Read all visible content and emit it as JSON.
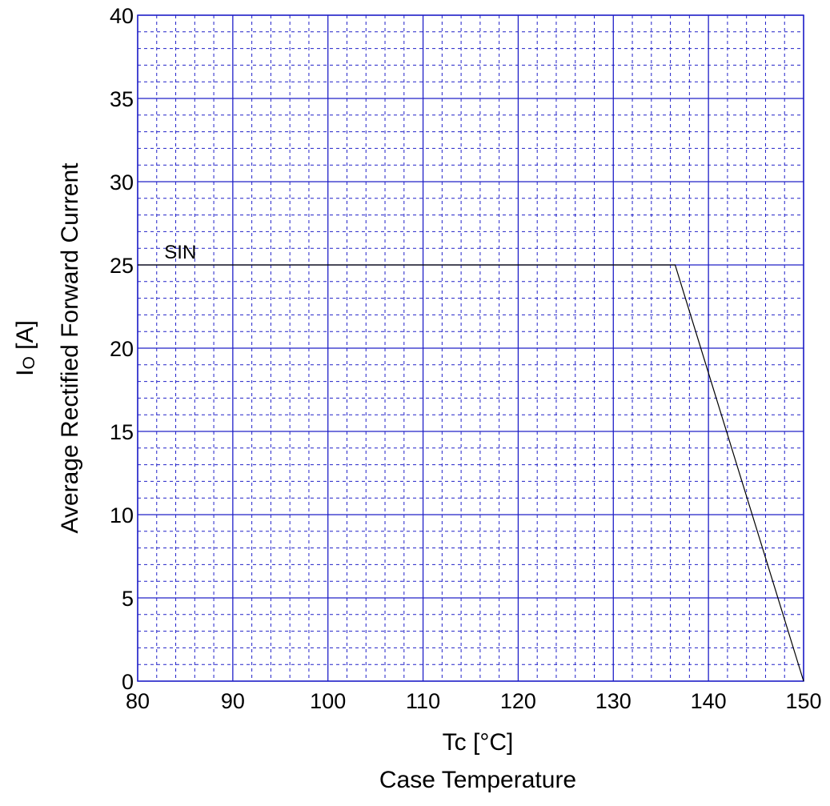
{
  "chart_data": {
    "type": "line",
    "x_axis": {
      "label": "Tc  [°C]",
      "sublabel": "Case Temperature",
      "range": [
        80,
        150
      ],
      "ticks": [
        80,
        90,
        100,
        110,
        120,
        130,
        140,
        150
      ],
      "minor_step": 2
    },
    "y_axis": {
      "label_symbol": "I",
      "label_subscript": "O",
      "label_unit": "  [A]",
      "sublabel": "Average Rectified Forward Current",
      "range": [
        0,
        40
      ],
      "ticks": [
        0,
        5,
        10,
        15,
        20,
        25,
        30,
        35,
        40
      ],
      "minor_step": 1
    },
    "grid": true,
    "colors": {
      "grid": "#2020c8",
      "line": "#000000"
    },
    "series": [
      {
        "name": "SIN",
        "x": [
          80,
          136.5,
          150
        ],
        "y": [
          25,
          25,
          0
        ]
      }
    ]
  }
}
